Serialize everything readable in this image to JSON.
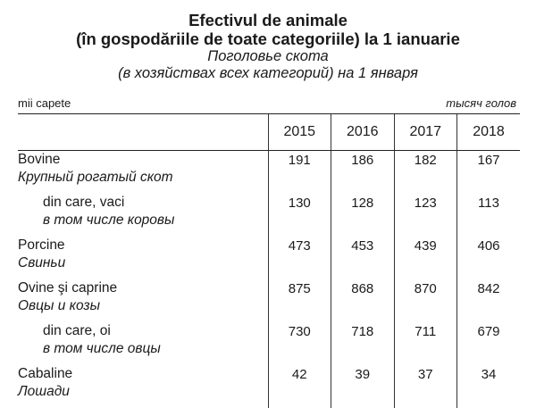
{
  "title": {
    "line1": "Efectivul de animale",
    "line2": "(în gospodăriile de toate categoriile) la 1 ianuarie",
    "line1_ru": "Поголовье скота",
    "line2_ru": "(в хозяйствах всех категорий) на 1 января"
  },
  "units": {
    "left": "mii capete",
    "right": "тысяч голов"
  },
  "table": {
    "years": [
      "2015",
      "2016",
      "2017",
      "2018"
    ],
    "rows": [
      {
        "ro": "Bovine",
        "ru": "Крупный рогатый скот",
        "values": [
          "191",
          "186",
          "182",
          "167"
        ]
      },
      {
        "ro": "din care, vaci",
        "ru": "в том числе коровы",
        "values": [
          "130",
          "128",
          "123",
          "113"
        ]
      },
      {
        "ro": "Porcine",
        "ru": "Свиньи",
        "values": [
          "473",
          "453",
          "439",
          "406"
        ]
      },
      {
        "ro": "Ovine şi caprine",
        "ru": "Овцы и козы",
        "values": [
          "875",
          "868",
          "870",
          "842"
        ]
      },
      {
        "ro": "din care, oi",
        "ru": "в том числе овцы",
        "values": [
          "730",
          "718",
          "711",
          "679"
        ]
      },
      {
        "ro": "Cabaline",
        "ru": "Лошади",
        "values": [
          "42",
          "39",
          "37",
          "34"
        ]
      }
    ]
  }
}
